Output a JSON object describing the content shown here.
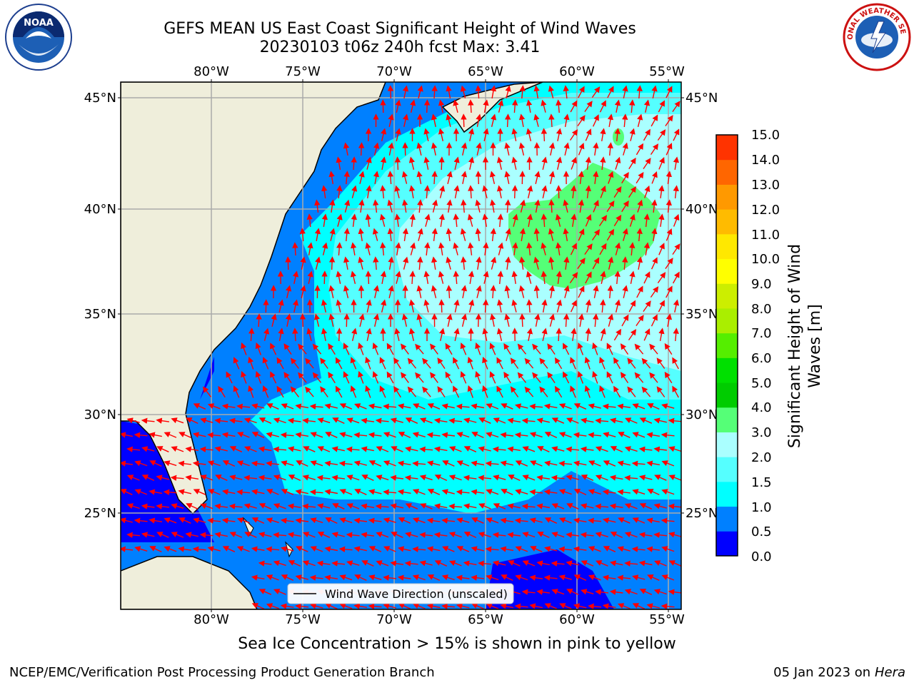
{
  "header": {
    "title_line1": "GEFS MEAN US East Coast Significant Height of Wind Waves",
    "title_line2": "20230103 t06z 240h fcst   Max: 3.41"
  },
  "logos": {
    "left": "NOAA",
    "right_text": "NATIONAL WEATHER SERVICE"
  },
  "map": {
    "lon_ticks": [
      "80°W",
      "75°W",
      "70°W",
      "65°W",
      "60°W",
      "55°W"
    ],
    "lat_ticks": [
      "45°N",
      "40°N",
      "35°N",
      "30°N",
      "25°N"
    ],
    "legend": "Wind Wave Direction (unscaled)",
    "colors": {
      "land": "#efeedb",
      "ocean_low": "#0066ff",
      "arrow": "#ff0000"
    }
  },
  "colorbar": {
    "label": "Significant Height of Wind Waves [m]",
    "ticks": [
      "15.0",
      "14.0",
      "13.0",
      "12.0",
      "11.0",
      "10.0",
      "9.0",
      "8.0",
      "7.0",
      "6.0",
      "5.0",
      "4.0",
      "3.0",
      "2.0",
      "1.5",
      "1.0",
      "0.5",
      "0.0"
    ],
    "colors": [
      "#0000ff",
      "#0080ff",
      "#00ffff",
      "#55ffff",
      "#aaffff",
      "#55ff77",
      "#00cc00",
      "#00e000",
      "#55ee00",
      "#aaee00",
      "#ccee00",
      "#ffff00",
      "#ffe800",
      "#ffbb00",
      "#ff9900",
      "#ff6600",
      "#ff3300"
    ]
  },
  "note": "Sea Ice Concentration > 15% is shown in pink to yellow",
  "footer": {
    "left": "NCEP/EMC/Verification Post Processing Product Generation Branch",
    "right_prefix": "05 Jan 2023 on ",
    "right_host": "Hera"
  }
}
